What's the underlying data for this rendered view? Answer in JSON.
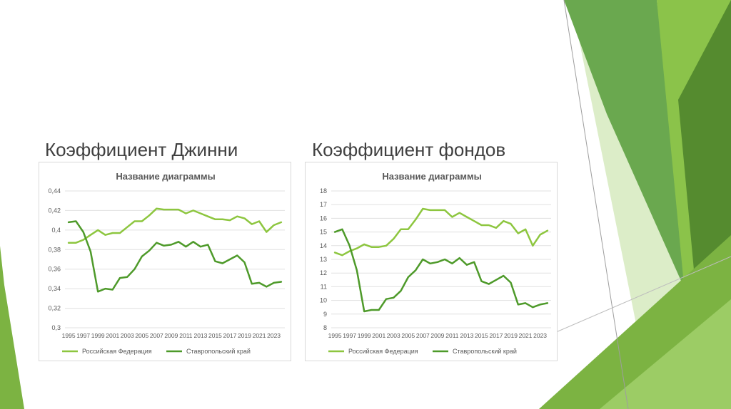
{
  "slide": {
    "heading_left": "Коэффициент Джинни",
    "heading_right": "Коэффициент фондов",
    "colors": {
      "light_green": "#8dc63f",
      "dark_green": "#4e9a2a",
      "deco_green_1": "#6aa84f",
      "deco_green_2": "#8bc34a",
      "deco_green_3": "#c5e1a5"
    }
  },
  "chart_data": [
    {
      "type": "line",
      "title": "Название диаграммы",
      "xlabel": "",
      "ylabel": "",
      "x": [
        1995,
        1996,
        1997,
        1998,
        1999,
        2000,
        2001,
        2002,
        2003,
        2004,
        2005,
        2006,
        2007,
        2008,
        2009,
        2010,
        2011,
        2012,
        2013,
        2014,
        2015,
        2016,
        2017,
        2018,
        2019,
        2020,
        2021,
        2022,
        2023,
        2024
      ],
      "x_tick_labels": [
        "1995",
        "1997",
        "1999",
        "2001",
        "2003",
        "2005",
        "2007",
        "2009",
        "2011",
        "2013",
        "2015",
        "2017",
        "2019",
        "2021",
        "2023"
      ],
      "ylim": [
        0.3,
        0.44
      ],
      "y_ticks": [
        "0,3",
        "0,32",
        "0,34",
        "0,36",
        "0,38",
        "0,4",
        "0,42",
        "0,44"
      ],
      "grid": true,
      "legend_position": "bottom",
      "series": [
        {
          "name": "Российская Федерация",
          "color": "#8dc63f",
          "values": [
            0.387,
            0.387,
            0.39,
            0.395,
            0.4,
            0.395,
            0.397,
            0.397,
            0.403,
            0.409,
            0.409,
            0.415,
            0.422,
            0.421,
            0.421,
            0.421,
            0.417,
            0.42,
            0.417,
            0.414,
            0.411,
            0.411,
            0.41,
            0.414,
            0.412,
            0.406,
            0.409,
            0.398,
            0.405,
            0.408
          ]
        },
        {
          "name": "Ставропольский край",
          "color": "#4e9a2a",
          "values": [
            0.408,
            0.409,
            0.398,
            0.378,
            0.337,
            0.34,
            0.339,
            0.351,
            0.352,
            0.36,
            0.373,
            0.379,
            0.387,
            0.384,
            0.385,
            0.388,
            0.383,
            0.388,
            0.383,
            0.385,
            0.368,
            0.366,
            0.37,
            0.374,
            0.367,
            0.345,
            0.346,
            0.342,
            0.346,
            0.347
          ]
        }
      ]
    },
    {
      "type": "line",
      "title": "Название диаграммы",
      "xlabel": "",
      "ylabel": "",
      "x": [
        1995,
        1996,
        1997,
        1998,
        1999,
        2000,
        2001,
        2002,
        2003,
        2004,
        2005,
        2006,
        2007,
        2008,
        2009,
        2010,
        2011,
        2012,
        2013,
        2014,
        2015,
        2016,
        2017,
        2018,
        2019,
        2020,
        2021,
        2022,
        2023,
        2024
      ],
      "x_tick_labels": [
        "1995",
        "1997",
        "1999",
        "2001",
        "2003",
        "2005",
        "2007",
        "2009",
        "2011",
        "2013",
        "2015",
        "2017",
        "2019",
        "2021",
        "2023"
      ],
      "ylim": [
        8,
        18
      ],
      "y_ticks": [
        "8",
        "9",
        "10",
        "11",
        "12",
        "13",
        "14",
        "15",
        "16",
        "17",
        "18"
      ],
      "grid": true,
      "legend_position": "bottom",
      "series": [
        {
          "name": "Российская Федерация",
          "color": "#8dc63f",
          "values": [
            13.5,
            13.3,
            13.6,
            13.8,
            14.1,
            13.9,
            13.9,
            14.0,
            14.5,
            15.2,
            15.2,
            15.9,
            16.7,
            16.6,
            16.6,
            16.6,
            16.1,
            16.4,
            16.1,
            15.8,
            15.5,
            15.5,
            15.3,
            15.8,
            15.6,
            14.9,
            15.2,
            14.0,
            14.8,
            15.1
          ]
        },
        {
          "name": "Ставропольский край",
          "color": "#4e9a2a",
          "values": [
            15.0,
            15.2,
            14.0,
            12.2,
            9.2,
            9.3,
            9.3,
            10.1,
            10.2,
            10.7,
            11.7,
            12.2,
            13.0,
            12.7,
            12.8,
            13.0,
            12.7,
            13.1,
            12.6,
            12.8,
            11.4,
            11.2,
            11.5,
            11.8,
            11.3,
            9.7,
            9.8,
            9.5,
            9.7,
            9.8
          ]
        }
      ]
    }
  ]
}
